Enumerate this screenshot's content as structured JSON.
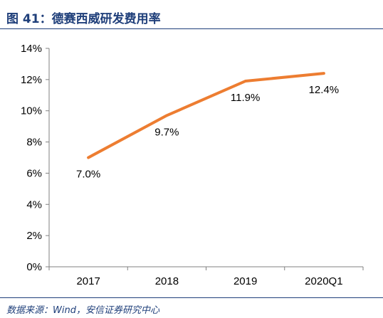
{
  "figure": {
    "title": "图 41：德赛西威研发费用率",
    "source": "数据来源：Wind，安信证券研究中心"
  },
  "chart_data": {
    "type": "line",
    "title": "",
    "xlabel": "",
    "ylabel": "",
    "categories": [
      "2017",
      "2018",
      "2019",
      "2020Q1"
    ],
    "series": [
      {
        "name": "",
        "values": [
          7.0,
          9.7,
          11.9,
          12.4
        ],
        "labels": [
          "7.0%",
          "9.7%",
          "11.9%",
          "12.4%"
        ],
        "color": "#ed7d31"
      }
    ],
    "ylim": [
      0,
      14
    ],
    "yticks": [
      "0%",
      "2%",
      "4%",
      "6%",
      "8%",
      "10%",
      "12%",
      "14%"
    ],
    "ytick_values": [
      0,
      2,
      4,
      6,
      8,
      10,
      12,
      14
    ],
    "grid": false,
    "legend": "none",
    "label_placement": [
      "below",
      "below",
      "below",
      "below"
    ]
  }
}
